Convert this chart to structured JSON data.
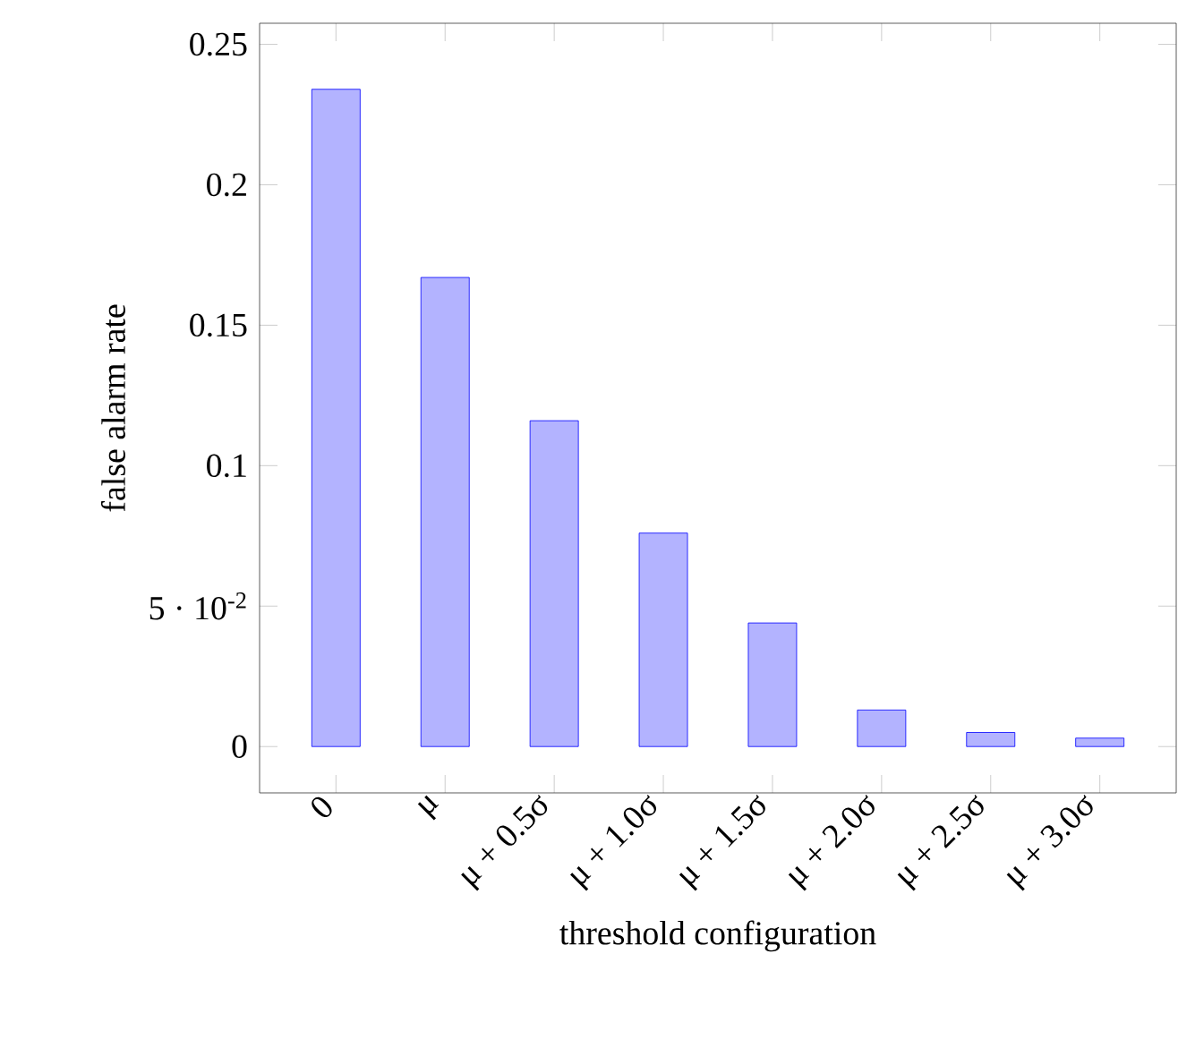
{
  "chart_data": {
    "type": "bar",
    "xlabel": "threshold configuration",
    "ylabel": "false alarm rate",
    "categories": [
      "0",
      "μ",
      "μ + 0.5σ",
      "μ + 1.0σ",
      "μ + 1.5σ",
      "μ + 2.0σ",
      "μ + 2.5σ",
      "μ + 3.0σ"
    ],
    "values": [
      0.234,
      0.167,
      0.116,
      0.076,
      0.044,
      0.013,
      0.005,
      0.003
    ],
    "color": "#b3b3ff",
    "ylim": [
      -0.0165,
      0.2575
    ],
    "yticks": [
      0,
      {
        "value": 0.05,
        "label": "5 · 10$^{-2}$"
      },
      0.1,
      0.15,
      0.2,
      0.25
    ],
    "grid": false
  }
}
